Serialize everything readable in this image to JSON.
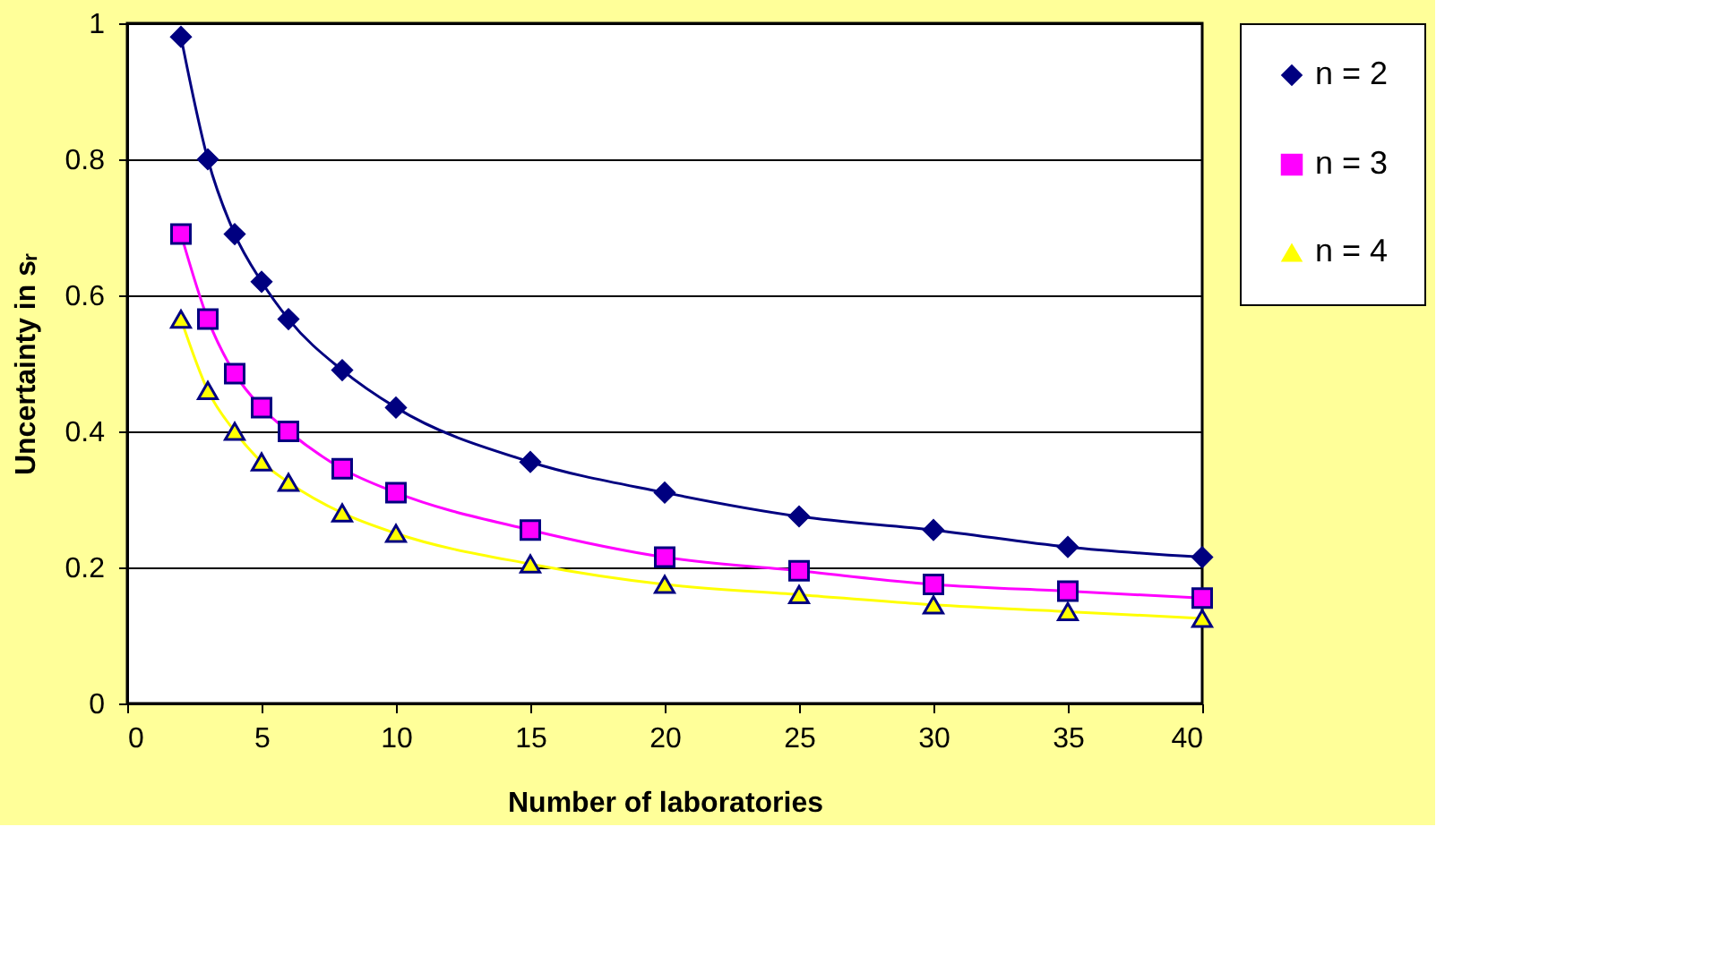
{
  "chart_data": {
    "type": "line",
    "xlabel": "Number of laboratories",
    "ylabel": "Uncertainty in sᵣ",
    "x": [
      2,
      3,
      4,
      5,
      6,
      8,
      10,
      15,
      20,
      25,
      30,
      35,
      40
    ],
    "series": [
      {
        "name": "n = 2",
        "color": "#000080",
        "marker": "diamond",
        "values": [
          0.98,
          0.8,
          0.69,
          0.62,
          0.565,
          0.49,
          0.435,
          0.355,
          0.31,
          0.275,
          0.255,
          0.23,
          0.215
        ]
      },
      {
        "name": "n = 3",
        "color": "#ff00ff",
        "marker": "square",
        "values": [
          0.69,
          0.565,
          0.485,
          0.435,
          0.4,
          0.345,
          0.31,
          0.255,
          0.215,
          0.195,
          0.175,
          0.165,
          0.155
        ]
      },
      {
        "name": "n = 4",
        "color": "#ffff00",
        "marker": "triangle",
        "values": [
          0.565,
          0.46,
          0.4,
          0.355,
          0.325,
          0.28,
          0.25,
          0.205,
          0.175,
          0.16,
          0.145,
          0.135,
          0.125
        ]
      }
    ],
    "xlim": [
      0,
      40
    ],
    "xticks": [
      0,
      5,
      10,
      15,
      20,
      25,
      30,
      35,
      40
    ],
    "ylim": [
      0,
      1
    ],
    "yticks": [
      0,
      0.2,
      0.4,
      0.6,
      0.8,
      1
    ],
    "grid": "y",
    "legend": "right",
    "line_style": "solid"
  }
}
